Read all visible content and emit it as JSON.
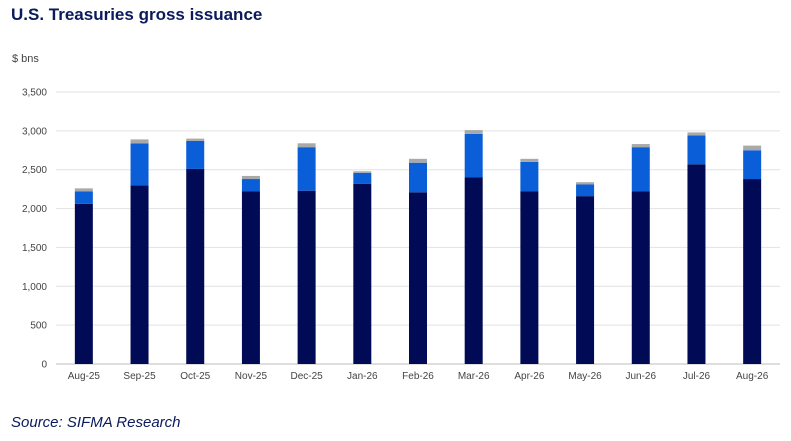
{
  "chart_data": {
    "type": "bar",
    "stacked": true,
    "title": "U.S. Treasuries gross issuance",
    "ylabel": "$ bns",
    "xlabel": "",
    "ylim": [
      0,
      3500
    ],
    "yticks": [
      0,
      500,
      1000,
      1500,
      2000,
      2500,
      3000,
      3500
    ],
    "ytick_labels": [
      "0",
      "500",
      "1,000",
      "1,500",
      "2,000",
      "2,500",
      "3,000",
      "3,500"
    ],
    "grid": true,
    "legend": "none",
    "categories": [
      "Aug-25",
      "Sep-25",
      "Oct-25",
      "Nov-25",
      "Dec-25",
      "Jan-26",
      "Feb-26",
      "Mar-26",
      "Apr-26",
      "May-26",
      "Jun-26",
      "Jul-26",
      "Aug-26"
    ],
    "series": [
      {
        "color": "#000a55",
        "values": [
          2060,
          2300,
          2510,
          2220,
          2230,
          2320,
          2210,
          2400,
          2220,
          2160,
          2220,
          2570,
          2380
        ]
      },
      {
        "color": "#0a5ed8",
        "values": [
          160,
          540,
          360,
          160,
          560,
          140,
          380,
          560,
          380,
          150,
          570,
          370,
          370
        ]
      },
      {
        "color": "#a9a9a9",
        "values": [
          40,
          50,
          30,
          40,
          50,
          20,
          50,
          50,
          40,
          30,
          40,
          40,
          60
        ]
      }
    ]
  },
  "source": "Source: SIFMA Research"
}
